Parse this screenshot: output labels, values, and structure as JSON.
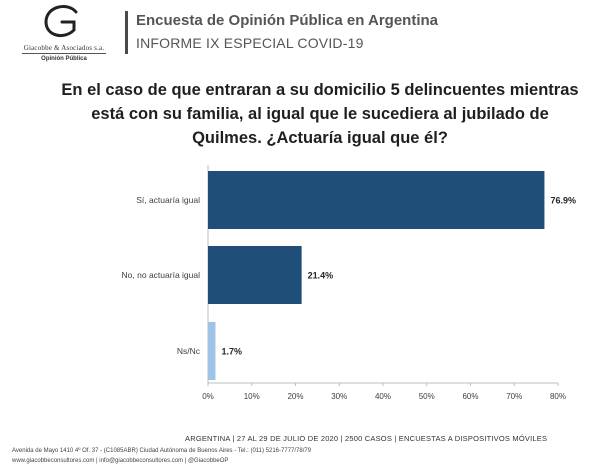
{
  "logo": {
    "name": "Giacobbe & Asociados s.a.",
    "subtitle": "Opinión Pública"
  },
  "header": {
    "title": "Encuesta de Opinión Pública en Argentina",
    "subtitle": "INFORME IX ESPECIAL COVID-19"
  },
  "question": "En el caso de que entraran a su domicilio 5 delincuentes mientras está con su familia, al igual que le sucediera al jubilado de Quilmes. ¿Actuaría igual que él?",
  "chart_data": {
    "type": "bar",
    "orientation": "horizontal",
    "categories": [
      "Sí, actuaría igual",
      "No, no actuaría igual",
      "Ns/Nc"
    ],
    "values": [
      76.9,
      21.4,
      1.7
    ],
    "value_labels": [
      "76.9%",
      "21.4%",
      "1.7%"
    ],
    "bar_colors": [
      "#1f4e79",
      "#1f4e79",
      "#9dc3e6"
    ],
    "xlim": [
      0,
      80
    ],
    "xticks": [
      "0%",
      "10%",
      "20%",
      "30%",
      "40%",
      "50%",
      "60%",
      "70%",
      "80%"
    ],
    "grid": false
  },
  "footer": {
    "main": "ARGENTINA | 27 AL 29 DE JULIO DE 2020 | 2500 CASOS | ENCUESTAS A DISPOSITIVOS MÓVILES",
    "address": "Avenida de Mayo 1410 4º Of. 37 - (C1085ABR) Ciudad Autónoma de Buenos Aires - Tel.: (011) 5216-7777/78/79",
    "web": "www.giacobbeconsultores.com | info@giacobbeconsultores.com | @GiacobbeOP"
  }
}
